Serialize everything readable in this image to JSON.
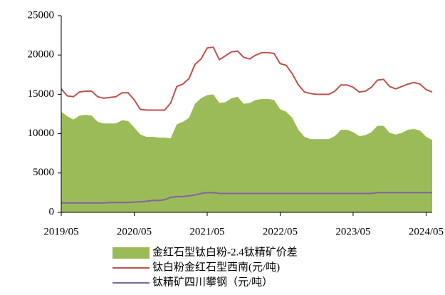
{
  "chart_data": {
    "type": "area-line",
    "x": [
      "2019/05",
      "2019/06",
      "2019/07",
      "2019/08",
      "2019/09",
      "2019/10",
      "2019/11",
      "2019/12",
      "2020/01",
      "2020/02",
      "2020/03",
      "2020/04",
      "2020/05",
      "2020/06",
      "2020/07",
      "2020/08",
      "2020/09",
      "2020/10",
      "2020/11",
      "2020/12",
      "2021/01",
      "2021/02",
      "2021/03",
      "2021/04",
      "2021/05",
      "2021/06",
      "2021/07",
      "2021/08",
      "2021/09",
      "2021/10",
      "2021/11",
      "2021/12",
      "2022/01",
      "2022/02",
      "2022/03",
      "2022/04",
      "2022/05",
      "2022/06",
      "2022/07",
      "2022/08",
      "2022/09",
      "2022/10",
      "2022/11",
      "2022/12",
      "2023/01",
      "2023/02",
      "2023/03",
      "2023/04",
      "2023/05",
      "2023/06",
      "2023/07",
      "2023/08",
      "2023/09",
      "2023/10",
      "2023/11",
      "2023/12",
      "2024/01",
      "2024/02",
      "2024/03",
      "2024/04",
      "2024/05",
      "2024/06"
    ],
    "series": [
      {
        "name": "金红石型钛白粉-2.4钛精矿价差",
        "kind": "area",
        "color": "#9bbb59",
        "values": [
          12800,
          12200,
          11800,
          12300,
          12400,
          12300,
          11500,
          11300,
          11300,
          11300,
          11700,
          11600,
          10800,
          9900,
          9600,
          9600,
          9500,
          9500,
          9400,
          11200,
          11500,
          12000,
          13800,
          14500,
          14900,
          15000,
          13900,
          14000,
          14500,
          14700,
          13800,
          13900,
          14300,
          14400,
          14400,
          14300,
          13100,
          12800,
          12000,
          10500,
          9600,
          9300,
          9300,
          9300,
          9300,
          9700,
          10500,
          10500,
          10200,
          9700,
          9800,
          10200,
          11000,
          11000,
          10100,
          9900,
          10100,
          10500,
          10600,
          10400,
          9600,
          9200
        ]
      },
      {
        "name": "钛白粉金红石型西南(元/吨)",
        "kind": "line",
        "color": "#c0504d",
        "values": [
          15700,
          14800,
          14700,
          15300,
          15400,
          15400,
          14700,
          14500,
          14600,
          14700,
          15200,
          15200,
          14300,
          13100,
          13000,
          13000,
          13000,
          13000,
          13900,
          16000,
          16300,
          17000,
          18800,
          19500,
          20900,
          21000,
          19400,
          19900,
          20400,
          20500,
          19700,
          19500,
          20000,
          20300,
          20300,
          20200,
          18900,
          18700,
          17600,
          16200,
          15300,
          15100,
          15000,
          15000,
          15000,
          15400,
          16200,
          16200,
          15900,
          15300,
          15400,
          15900,
          16800,
          16900,
          16000,
          15700,
          16000,
          16300,
          16500,
          16300,
          15600,
          15300
        ]
      },
      {
        "name": "钛精矿四川攀钢（元/吨）",
        "kind": "line",
        "color": "#8064a2",
        "values": [
          1200,
          1200,
          1200,
          1200,
          1200,
          1200,
          1200,
          1200,
          1250,
          1250,
          1250,
          1250,
          1300,
          1350,
          1400,
          1500,
          1500,
          1600,
          1900,
          2000,
          2000,
          2100,
          2200,
          2400,
          2500,
          2500,
          2400,
          2400,
          2400,
          2400,
          2400,
          2400,
          2400,
          2400,
          2400,
          2400,
          2400,
          2400,
          2400,
          2400,
          2400,
          2400,
          2400,
          2400,
          2400,
          2400,
          2400,
          2400,
          2400,
          2400,
          2400,
          2400,
          2500,
          2500,
          2500,
          2500,
          2500,
          2500,
          2500,
          2500,
          2500,
          2500
        ]
      }
    ],
    "xticks": [
      "2019/05",
      "2020/05",
      "2021/05",
      "2022/05",
      "2023/05",
      "2024/05"
    ],
    "ylim": [
      0,
      25000
    ],
    "yticks": [
      0,
      5000,
      10000,
      15000,
      20000,
      25000
    ],
    "grid": false,
    "legend": "bottom"
  }
}
